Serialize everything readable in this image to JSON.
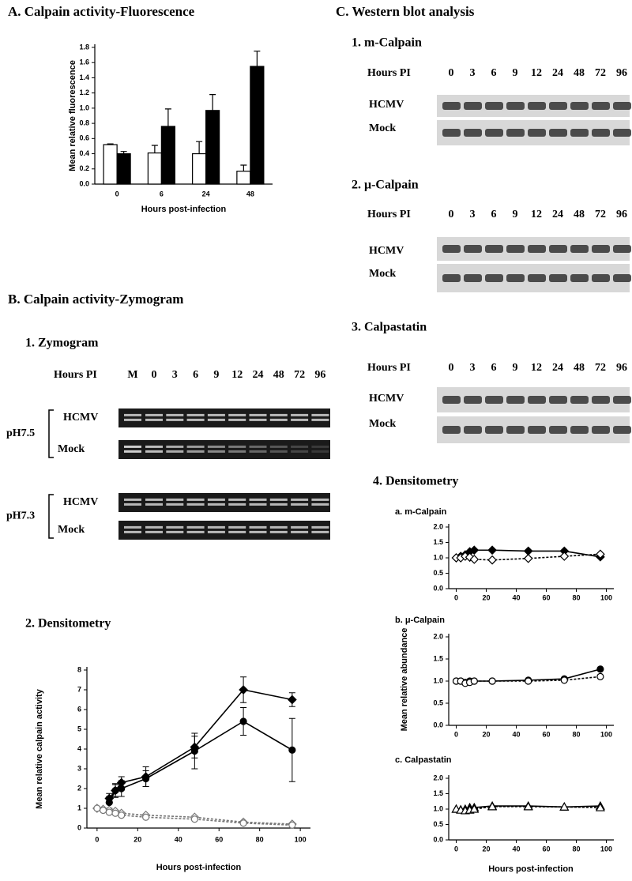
{
  "zymogram": {
    "section": "B. Calpain activity-Zymogram",
    "heading": "1. Zymogram",
    "hours_label": "Hours PI",
    "lanes": [
      "M",
      "0",
      "3",
      "6",
      "9",
      "12",
      "24",
      "48",
      "72",
      "96"
    ],
    "panels": [
      {
        "ph": "pH7.5",
        "rows": [
          "HCMV",
          "Mock"
        ]
      },
      {
        "ph": "pH7.3",
        "rows": [
          "HCMV",
          "Mock"
        ]
      }
    ]
  },
  "western": {
    "section": "C. Western blot analysis",
    "blots": [
      {
        "title": "1. m-Calpain",
        "hours_label": "Hours PI",
        "lanes": [
          "0",
          "3",
          "6",
          "9",
          "12",
          "24",
          "48",
          "72",
          "96"
        ],
        "rows": [
          "HCMV",
          "Mock"
        ]
      },
      {
        "title": "2. μ-Calpain",
        "hours_label": "Hours PI",
        "lanes": [
          "0",
          "3",
          "6",
          "9",
          "12",
          "24",
          "48",
          "72",
          "96"
        ],
        "rows": [
          "HCMV",
          "Mock"
        ]
      },
      {
        "title": "3. Calpastatin",
        "hours_label": "Hours PI",
        "lanes": [
          "0",
          "3",
          "6",
          "9",
          "12",
          "24",
          "48",
          "72",
          "96"
        ],
        "rows": [
          "HCMV",
          "Mock"
        ]
      }
    ],
    "densitometry": {
      "heading": "4. Densitometry",
      "ylabel": "Mean relative abundance",
      "xlabel": "Hours post-infection"
    }
  },
  "chart_data": [
    {
      "type": "bar",
      "title": "A. Calpain activity-Fluorescence",
      "xlabel": "Hours post-infection",
      "ylabel": "Mean relative fluorescence",
      "categories": [
        "0",
        "6",
        "24",
        "48"
      ],
      "series": [
        {
          "color": "#ffffff",
          "values": [
            0.52,
            0.41,
            0.4,
            0.17
          ],
          "errors": [
            0.01,
            0.1,
            0.16,
            0.08
          ]
        },
        {
          "color": "#000000",
          "values": [
            0.4,
            0.76,
            0.97,
            1.55
          ],
          "errors": [
            0.03,
            0.23,
            0.21,
            0.2
          ]
        }
      ],
      "ylim": [
        0,
        1.8
      ],
      "yticks": [
        {
          "value": 0,
          "label": "0.0"
        },
        0.2,
        0.4,
        0.6,
        0.8,
        {
          "value": 1,
          "label": "1.0"
        },
        1.2,
        1.4,
        1.6,
        1.8
      ]
    },
    {
      "type": "line",
      "title": "2. Densitometry",
      "xlabel": "Hours post-infection",
      "ylabel": "Mean relative calpain activity",
      "x": [
        0,
        3,
        6,
        9,
        12,
        24,
        48,
        72,
        96
      ],
      "series": [
        {
          "color": "#000000",
          "marker": "diamond",
          "filled": true,
          "dashed": false,
          "values": [
            null,
            null,
            1.5,
            1.9,
            2.3,
            2.6,
            4.1,
            7.0,
            6.5
          ],
          "errors": [
            null,
            null,
            0.25,
            0.35,
            0.3,
            0.5,
            0.55,
            0.65,
            0.35
          ]
        },
        {
          "color": "#000000",
          "marker": "circle",
          "filled": true,
          "dashed": false,
          "values": [
            null,
            null,
            1.3,
            1.9,
            2.0,
            2.5,
            3.9,
            5.4,
            3.95
          ],
          "errors": [
            null,
            null,
            0.3,
            0.3,
            0.4,
            0.4,
            0.9,
            0.7,
            1.6
          ]
        },
        {
          "color": "#777777",
          "marker": "diamond",
          "filled": false,
          "dashed": true,
          "values": [
            1.0,
            0.95,
            0.9,
            0.85,
            0.75,
            0.65,
            0.55,
            0.3,
            0.2
          ]
        },
        {
          "color": "#777777",
          "marker": "circle",
          "filled": false,
          "dashed": true,
          "values": [
            1.0,
            0.9,
            0.8,
            0.75,
            0.65,
            0.55,
            0.45,
            0.25,
            0.15
          ]
        }
      ],
      "xlim": [
        -5,
        105
      ],
      "xticks": [
        0,
        20,
        40,
        60,
        80,
        100
      ],
      "ylim": [
        0,
        8
      ],
      "yticks": [
        0,
        1,
        2,
        3,
        4,
        5,
        6,
        7,
        8
      ]
    },
    {
      "type": "line",
      "title": "a. m-Calpain",
      "x": [
        0,
        3,
        6,
        9,
        12,
        24,
        48,
        72,
        96
      ],
      "series": [
        {
          "color": "#000000",
          "marker": "diamond",
          "filled": true,
          "dashed": false,
          "values": [
            1.0,
            1.05,
            1.1,
            1.2,
            1.25,
            1.25,
            1.22,
            1.22,
            1.03
          ]
        },
        {
          "color": "#000000",
          "marker": "diamond",
          "filled": false,
          "dashed": true,
          "values": [
            1.0,
            1.0,
            1.05,
            1.02,
            0.95,
            0.93,
            0.98,
            1.05,
            1.12
          ]
        }
      ],
      "xlim": [
        -5,
        105
      ],
      "xticks": [
        0,
        20,
        40,
        60,
        80,
        100
      ],
      "ylim": [
        0,
        2
      ],
      "yticks": [
        {
          "value": 0,
          "label": "0.0"
        },
        0.5,
        {
          "value": 1,
          "label": "1.0"
        },
        1.5,
        {
          "value": 2,
          "label": "2.0"
        }
      ]
    },
    {
      "type": "line",
      "title": "b. μ-Calpain",
      "x": [
        0,
        3,
        6,
        9,
        12,
        24,
        48,
        72,
        96
      ],
      "series": [
        {
          "color": "#000000",
          "marker": "circle",
          "filled": true,
          "dashed": false,
          "values": [
            1.0,
            1.0,
            0.97,
            1.0,
            1.0,
            1.0,
            1.02,
            1.05,
            1.27
          ]
        },
        {
          "color": "#000000",
          "marker": "circle",
          "filled": false,
          "dashed": true,
          "values": [
            1.0,
            1.0,
            0.95,
            0.97,
            1.0,
            1.0,
            1.0,
            1.02,
            1.1
          ]
        }
      ],
      "xlim": [
        -5,
        105
      ],
      "xticks": [
        0,
        20,
        40,
        60,
        80,
        100
      ],
      "ylim": [
        0,
        2
      ],
      "yticks": [
        {
          "value": 0,
          "label": "0.0"
        },
        0.5,
        {
          "value": 1,
          "label": "1.0"
        },
        1.5,
        {
          "value": 2,
          "label": "2.0"
        }
      ]
    },
    {
      "type": "line",
      "title": "c. Calpastatin",
      "x": [
        0,
        3,
        6,
        9,
        12,
        24,
        48,
        72,
        96
      ],
      "series": [
        {
          "color": "#000000",
          "marker": "triangle",
          "filled": true,
          "dashed": false,
          "values": [
            1.0,
            0.98,
            1.0,
            1.05,
            1.05,
            1.1,
            1.1,
            1.07,
            1.1
          ]
        },
        {
          "color": "#000000",
          "marker": "triangle",
          "filled": false,
          "dashed": true,
          "values": [
            1.0,
            0.97,
            0.95,
            0.97,
            1.0,
            1.08,
            1.08,
            1.07,
            1.05
          ]
        }
      ],
      "xlim": [
        -5,
        105
      ],
      "xticks": [
        0,
        20,
        40,
        60,
        80,
        100
      ],
      "ylim": [
        0,
        2
      ],
      "yticks": [
        {
          "value": 0,
          "label": "0.0"
        },
        0.5,
        {
          "value": 1,
          "label": "1.0"
        },
        1.5,
        {
          "value": 2,
          "label": "2.0"
        }
      ]
    }
  ]
}
